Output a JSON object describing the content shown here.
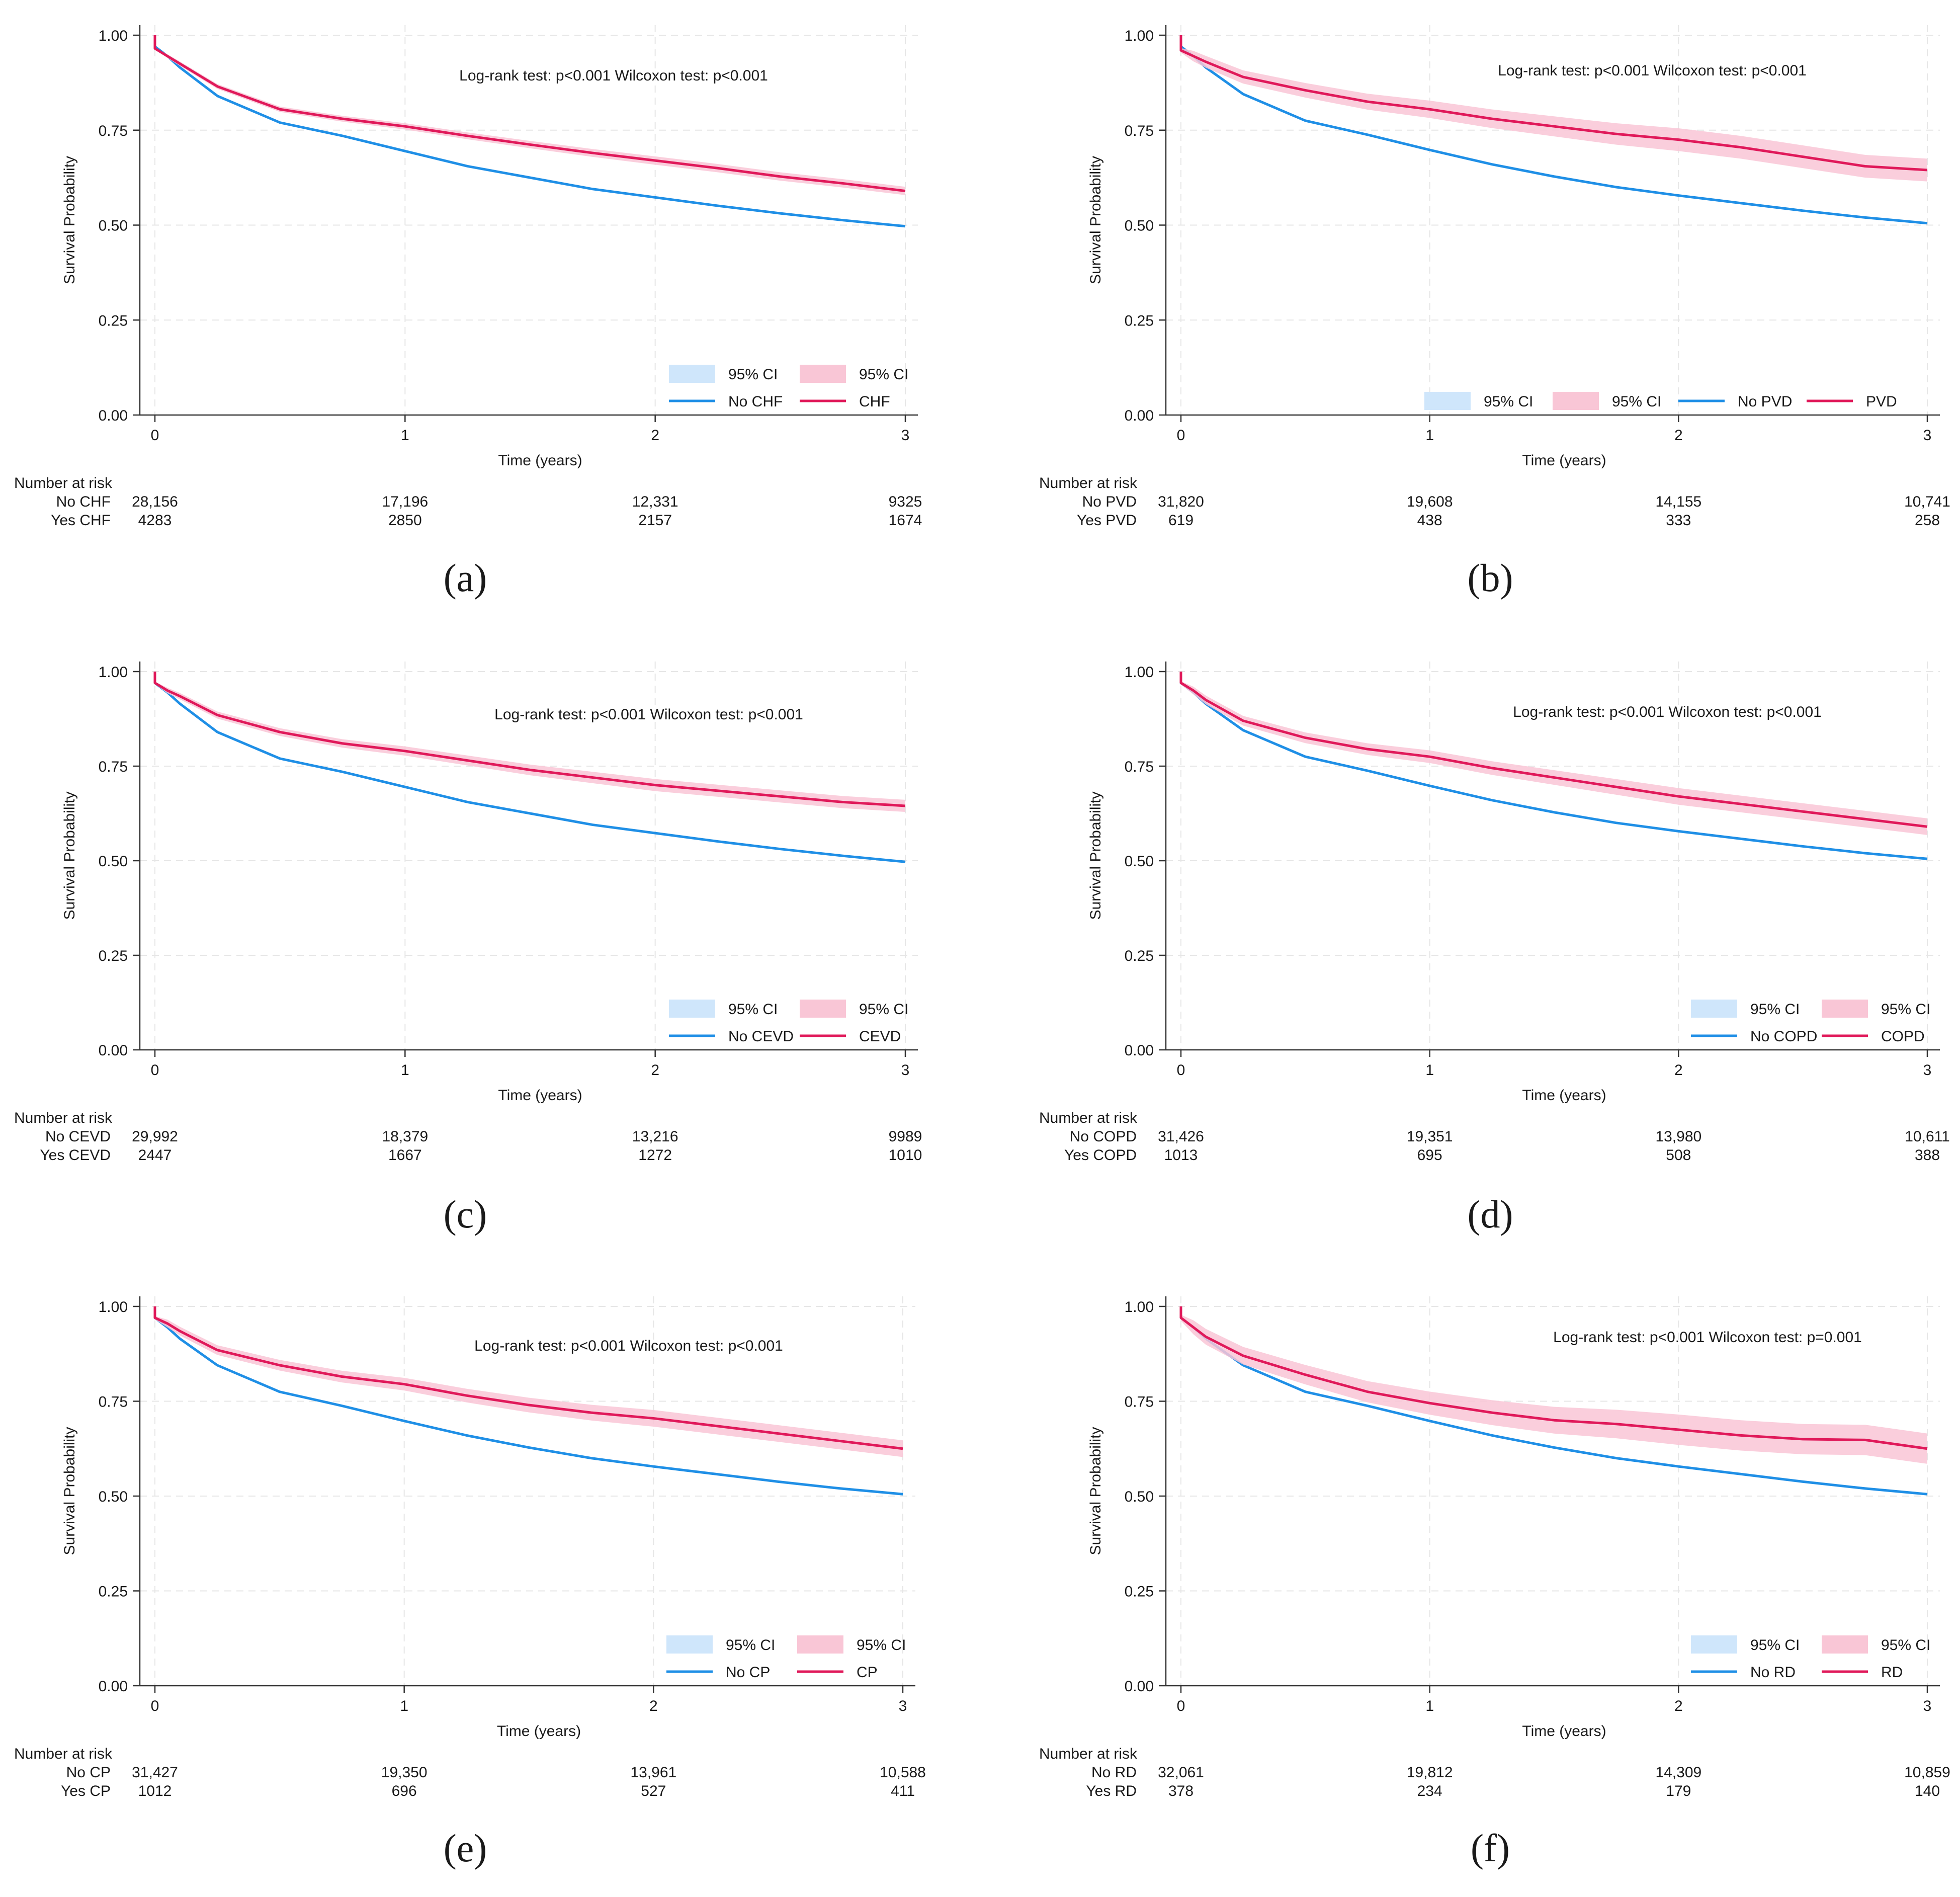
{
  "chart_data": [
    {
      "type": "line",
      "panel_label": "(a)",
      "annotation": "Log-rank test: p<0.001 Wilcoxon test: p<0.001",
      "xlabel": "Time (years)",
      "ylabel": "Survival Probability",
      "xlim": [
        0,
        3
      ],
      "ylim": [
        0,
        1
      ],
      "x_ticks": [
        "0",
        "1",
        "2",
        "3"
      ],
      "y_ticks": [
        "0.00",
        "0.25",
        "0.50",
        "0.75",
        "1.00"
      ],
      "legend_position": "bottom-right",
      "legend_layout": "2x2",
      "legend": [
        "95% CI",
        "95% CI",
        "No CHF",
        "CHF"
      ],
      "x": [
        0,
        0.05,
        0.1,
        0.25,
        0.5,
        0.75,
        1.0,
        1.25,
        1.5,
        1.75,
        2.0,
        2.25,
        2.5,
        2.75,
        3.0
      ],
      "series": [
        {
          "name": "No CHF",
          "color": "#1f8fe6",
          "ci_width": 0.003,
          "values": [
            0.97,
            0.945,
            0.915,
            0.84,
            0.77,
            0.735,
            0.695,
            0.655,
            0.625,
            0.595,
            0.573,
            0.551,
            0.531,
            0.513,
            0.497
          ]
        },
        {
          "name": "CHF",
          "color": "#e0195a",
          "ci_width": 0.011,
          "values": [
            0.965,
            0.945,
            0.925,
            0.865,
            0.805,
            0.78,
            0.76,
            0.735,
            0.712,
            0.69,
            0.67,
            0.65,
            0.628,
            0.61,
            0.59
          ]
        }
      ],
      "risk_table": {
        "title": "Number at risk",
        "rows": [
          {
            "label": "No CHF",
            "values": [
              "28,156",
              "17,196",
              "12,331",
              "9325"
            ]
          },
          {
            "label": "Yes CHF",
            "values": [
              "4283",
              "2850",
              "2157",
              "1674"
            ]
          }
        ]
      }
    },
    {
      "type": "line",
      "panel_label": "(b)",
      "annotation": "Log-rank test: p<0.001 Wilcoxon test: p<0.001",
      "xlabel": "Time (years)",
      "ylabel": "Survival Probability",
      "xlim": [
        0,
        3
      ],
      "ylim": [
        0,
        1
      ],
      "x_ticks": [
        "0",
        "1",
        "2",
        "3"
      ],
      "y_ticks": [
        "0.00",
        "0.25",
        "0.50",
        "0.75",
        "1.00"
      ],
      "legend_position": "bottom-right",
      "legend_layout": "1x4",
      "legend": [
        "95% CI",
        "95% CI",
        "No PVD",
        "PVD"
      ],
      "x": [
        0,
        0.05,
        0.1,
        0.25,
        0.5,
        0.75,
        1.0,
        1.25,
        1.5,
        1.75,
        2.0,
        2.25,
        2.5,
        2.75,
        3.0
      ],
      "series": [
        {
          "name": "No PVD",
          "color": "#1f8fe6",
          "ci_width": 0.003,
          "values": [
            0.97,
            0.945,
            0.915,
            0.845,
            0.775,
            0.738,
            0.698,
            0.66,
            0.628,
            0.6,
            0.578,
            0.558,
            0.538,
            0.52,
            0.505
          ]
        },
        {
          "name": "PVD",
          "color": "#e0195a",
          "ci_width": 0.03,
          "values": [
            0.96,
            0.945,
            0.93,
            0.89,
            0.855,
            0.825,
            0.805,
            0.78,
            0.76,
            0.74,
            0.725,
            0.705,
            0.68,
            0.655,
            0.645
          ]
        }
      ],
      "risk_table": {
        "title": "Number at risk",
        "rows": [
          {
            "label": "No PVD",
            "values": [
              "31,820",
              "19,608",
              "14,155",
              "10,741"
            ]
          },
          {
            "label": "Yes PVD",
            "values": [
              "619",
              "438",
              "333",
              "258"
            ]
          }
        ]
      }
    },
    {
      "type": "line",
      "panel_label": "(c)",
      "annotation": "Log-rank test: p<0.001 Wilcoxon test: p<0.001",
      "xlabel": "Time (years)",
      "ylabel": "Survival Probability",
      "xlim": [
        0,
        3
      ],
      "ylim": [
        0,
        1
      ],
      "x_ticks": [
        "0",
        "1",
        "2",
        "3"
      ],
      "y_ticks": [
        "0.00",
        "0.25",
        "0.50",
        "0.75",
        "1.00"
      ],
      "legend_position": "bottom-right",
      "legend_layout": "2x2",
      "legend": [
        "95% CI",
        "95% CI",
        "No CEVD",
        "CEVD"
      ],
      "x": [
        0,
        0.05,
        0.1,
        0.25,
        0.5,
        0.75,
        1.0,
        1.25,
        1.5,
        1.75,
        2.0,
        2.25,
        2.5,
        2.75,
        3.0
      ],
      "series": [
        {
          "name": "No CEVD",
          "color": "#1f8fe6",
          "ci_width": 0.003,
          "values": [
            0.97,
            0.945,
            0.915,
            0.84,
            0.77,
            0.735,
            0.695,
            0.655,
            0.625,
            0.595,
            0.573,
            0.551,
            0.531,
            0.513,
            0.497
          ]
        },
        {
          "name": "CEVD",
          "color": "#e0195a",
          "ci_width": 0.016,
          "values": [
            0.97,
            0.95,
            0.935,
            0.885,
            0.84,
            0.81,
            0.79,
            0.765,
            0.74,
            0.72,
            0.7,
            0.685,
            0.67,
            0.655,
            0.645
          ]
        }
      ],
      "risk_table": {
        "title": "Number at risk",
        "rows": [
          {
            "label": "No CEVD",
            "values": [
              "29,992",
              "18,379",
              "13,216",
              "9989"
            ]
          },
          {
            "label": "Yes CEVD",
            "values": [
              "2447",
              "1667",
              "1272",
              "1010"
            ]
          }
        ]
      }
    },
    {
      "type": "line",
      "panel_label": "(d)",
      "annotation": "Log-rank test: p<0.001 Wilcoxon test: p<0.001",
      "xlabel": "Time (years)",
      "ylabel": "Survival Probability",
      "xlim": [
        0,
        3
      ],
      "ylim": [
        0,
        1
      ],
      "x_ticks": [
        "0",
        "1",
        "2",
        "3"
      ],
      "y_ticks": [
        "0.00",
        "0.25",
        "0.50",
        "0.75",
        "1.00"
      ],
      "legend_position": "bottom-right",
      "legend_layout": "2x2",
      "legend": [
        "95% CI",
        "95% CI",
        "No COPD",
        "COPD"
      ],
      "x": [
        0,
        0.05,
        0.1,
        0.25,
        0.5,
        0.75,
        1.0,
        1.25,
        1.5,
        1.75,
        2.0,
        2.25,
        2.5,
        2.75,
        3.0
      ],
      "series": [
        {
          "name": "No COPD",
          "color": "#1f8fe6",
          "ci_width": 0.003,
          "values": [
            0.97,
            0.945,
            0.915,
            0.845,
            0.775,
            0.738,
            0.698,
            0.66,
            0.628,
            0.6,
            0.578,
            0.558,
            0.538,
            0.52,
            0.505
          ]
        },
        {
          "name": "COPD",
          "color": "#e0195a",
          "ci_width": 0.022,
          "values": [
            0.97,
            0.95,
            0.925,
            0.87,
            0.825,
            0.795,
            0.775,
            0.745,
            0.72,
            0.695,
            0.67,
            0.65,
            0.63,
            0.61,
            0.59
          ]
        }
      ],
      "risk_table": {
        "title": "Number at risk",
        "rows": [
          {
            "label": "No COPD",
            "values": [
              "31,426",
              "19,351",
              "13,980",
              "10,611"
            ]
          },
          {
            "label": "Yes COPD",
            "values": [
              "1013",
              "695",
              "508",
              "388"
            ]
          }
        ]
      }
    },
    {
      "type": "line",
      "panel_label": "(e)",
      "annotation": "Log-rank test: p<0.001 Wilcoxon test: p<0.001",
      "xlabel": "Time (years)",
      "ylabel": "Survival Probability",
      "xlim": [
        0,
        3
      ],
      "ylim": [
        0,
        1
      ],
      "x_ticks": [
        "0",
        "1",
        "2",
        "3"
      ],
      "y_ticks": [
        "0.00",
        "0.25",
        "0.50",
        "0.75",
        "1.00"
      ],
      "legend_position": "bottom-right",
      "legend_layout": "2x2",
      "legend": [
        "95% CI",
        "95% CI",
        "No CP",
        "CP"
      ],
      "x": [
        0,
        0.05,
        0.1,
        0.25,
        0.5,
        0.75,
        1.0,
        1.25,
        1.5,
        1.75,
        2.0,
        2.25,
        2.5,
        2.75,
        3.0
      ],
      "series": [
        {
          "name": "No CP",
          "color": "#1f8fe6",
          "ci_width": 0.003,
          "values": [
            0.97,
            0.945,
            0.915,
            0.845,
            0.775,
            0.738,
            0.698,
            0.66,
            0.628,
            0.6,
            0.578,
            0.558,
            0.538,
            0.52,
            0.505
          ]
        },
        {
          "name": "CP",
          "color": "#e0195a",
          "ci_width": 0.022,
          "values": [
            0.97,
            0.955,
            0.935,
            0.885,
            0.845,
            0.815,
            0.795,
            0.765,
            0.74,
            0.72,
            0.705,
            0.685,
            0.665,
            0.645,
            0.625
          ]
        }
      ],
      "risk_table": {
        "title": "Number at risk",
        "rows": [
          {
            "label": "No CP",
            "values": [
              "31,427",
              "19,350",
              "13,961",
              "10,588"
            ]
          },
          {
            "label": "Yes CP",
            "values": [
              "1012",
              "696",
              "527",
              "411"
            ]
          }
        ]
      }
    },
    {
      "type": "line",
      "panel_label": "(f)",
      "annotation": "Log-rank test: p<0.001 Wilcoxon test: p=0.001",
      "xlabel": "Time (years)",
      "ylabel": "Survival Probability",
      "xlim": [
        0,
        3
      ],
      "ylim": [
        0,
        1
      ],
      "x_ticks": [
        "0",
        "1",
        "2",
        "3"
      ],
      "y_ticks": [
        "0.00",
        "0.25",
        "0.50",
        "0.75",
        "1.00"
      ],
      "legend_position": "bottom-right",
      "legend_layout": "2x2",
      "legend": [
        "95% CI",
        "95% CI",
        "No RD",
        "RD"
      ],
      "x": [
        0,
        0.05,
        0.1,
        0.25,
        0.5,
        0.75,
        1.0,
        1.25,
        1.5,
        1.75,
        2.0,
        2.25,
        2.5,
        2.75,
        3.0
      ],
      "series": [
        {
          "name": "No RD",
          "color": "#1f8fe6",
          "ci_width": 0.003,
          "values": [
            0.97,
            0.945,
            0.915,
            0.845,
            0.775,
            0.738,
            0.698,
            0.66,
            0.628,
            0.6,
            0.578,
            0.558,
            0.538,
            0.52,
            0.505
          ]
        },
        {
          "name": "RD",
          "color": "#e0195a",
          "ci_width": 0.04,
          "values": [
            0.97,
            0.945,
            0.92,
            0.87,
            0.82,
            0.775,
            0.745,
            0.72,
            0.7,
            0.69,
            0.675,
            0.66,
            0.65,
            0.648,
            0.625
          ]
        }
      ],
      "risk_table": {
        "title": "Number at risk",
        "rows": [
          {
            "label": "No RD",
            "values": [
              "32,061",
              "19,812",
              "14,309",
              "10,859"
            ]
          },
          {
            "label": "Yes RD",
            "values": [
              "378",
              "234",
              "179",
              "140"
            ]
          }
        ]
      }
    }
  ]
}
